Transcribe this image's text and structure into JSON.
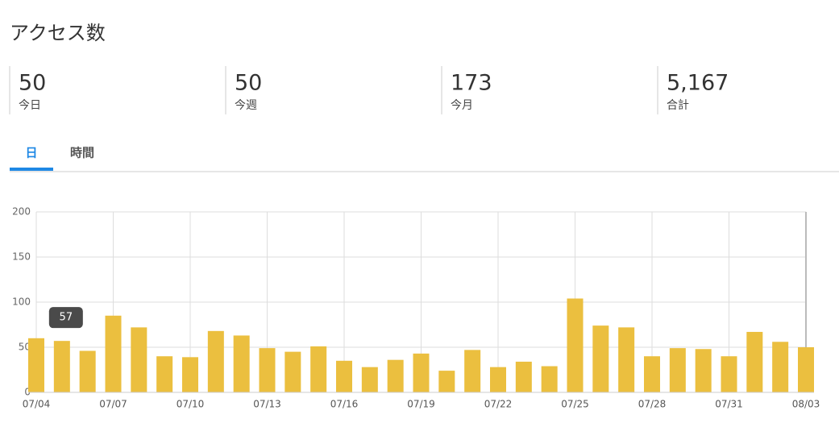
{
  "header": {
    "title": "アクセス数"
  },
  "stats": [
    {
      "value": "50",
      "label": "今日"
    },
    {
      "value": "50",
      "label": "今週"
    },
    {
      "value": "173",
      "label": "今月"
    },
    {
      "value": "5,167",
      "label": "合計"
    }
  ],
  "tabs": [
    "日",
    "時間"
  ],
  "chart_data": {
    "type": "bar",
    "categories": [
      "07/04",
      null,
      null,
      "07/07",
      null,
      null,
      "07/10",
      null,
      null,
      "07/13",
      null,
      null,
      "07/16",
      null,
      null,
      "07/19",
      null,
      null,
      "07/22",
      null,
      null,
      "07/25",
      null,
      null,
      "07/28",
      null,
      null,
      "07/31",
      null,
      null,
      "08/03"
    ],
    "values": [
      60,
      57,
      46,
      85,
      72,
      40,
      39,
      68,
      63,
      49,
      45,
      51,
      35,
      28,
      36,
      43,
      24,
      47,
      28,
      34,
      29,
      104,
      74,
      72,
      40,
      49,
      48,
      40,
      67,
      56,
      50
    ],
    "color": "#ebbf3f",
    "ylim": [
      0,
      200
    ],
    "yticks": [
      0,
      50,
      100,
      150,
      200
    ],
    "grid": true
  }
}
